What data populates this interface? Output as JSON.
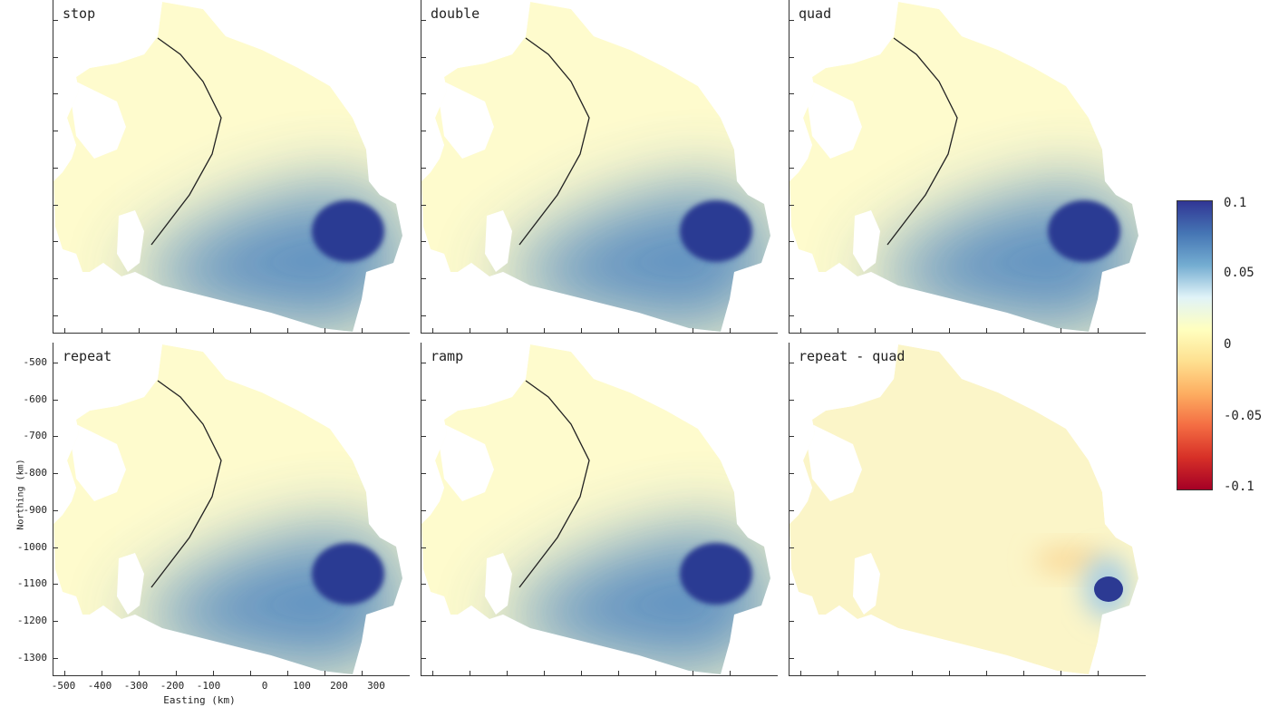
{
  "panels": [
    {
      "label": "stop",
      "type": "diff"
    },
    {
      "label": "double",
      "type": "diff"
    },
    {
      "label": "quad",
      "type": "diff"
    },
    {
      "label": "repeat",
      "type": "diff"
    },
    {
      "label": "ramp",
      "type": "diff"
    },
    {
      "label": "repeat - quad",
      "type": "residual"
    }
  ],
  "chart_data": {
    "type": "heatmap",
    "xlabel": "Easting (km)",
    "ylabel": "Northing (km)",
    "xticks": [
      "-500",
      "-400",
      "-300",
      "-200",
      "-100",
      "0",
      "100",
      "200",
      "300"
    ],
    "yticks": [
      "-500",
      "-600",
      "-700",
      "-800",
      "-900",
      "-1000",
      "-1100",
      "-1200",
      "-1300"
    ],
    "colorbar": {
      "ticks": [
        "0.1",
        "0.05",
        "0",
        "-0.05",
        "-0.1"
      ],
      "range": [
        -0.1,
        0.1
      ],
      "colors": [
        "#313695",
        "#4575b4",
        "#74add1",
        "#e0f3f8",
        "#ffffbf",
        "#fee090",
        "#fdae61",
        "#f46d43",
        "#d73027",
        "#a50026"
      ]
    }
  }
}
